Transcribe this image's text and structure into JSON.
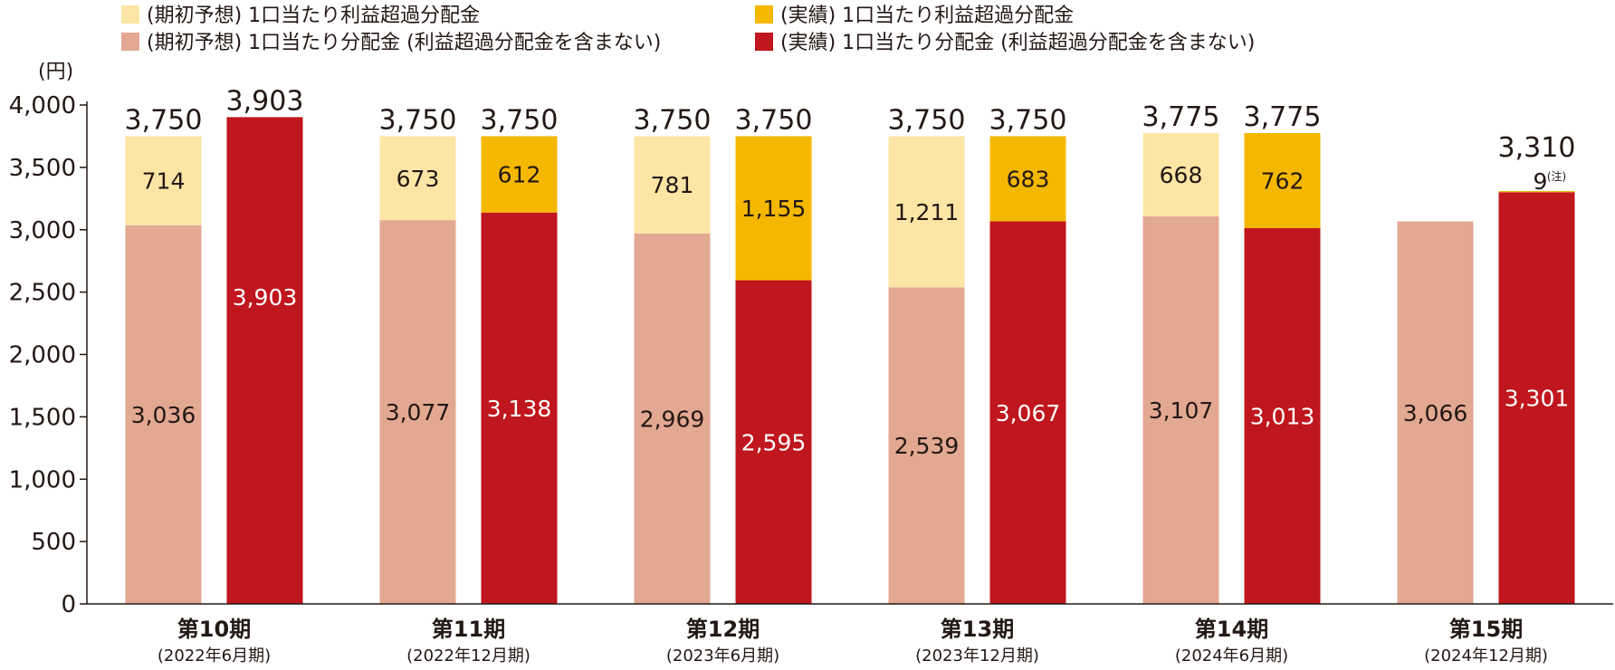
{
  "colors": {
    "forecast_excess": "#fde5a6",
    "forecast_base": "#e3a891",
    "actual_excess": "#f5b800",
    "actual_base": "#c0161d",
    "axis": "#231815"
  },
  "chart_data": {
    "type": "bar",
    "stacked": true,
    "unit_label": "(円)",
    "ylim": [
      0,
      4000
    ],
    "yticks": [
      0,
      500,
      1000,
      1500,
      2000,
      2500,
      3000,
      3500,
      4000
    ],
    "ytick_labels": [
      "0",
      "500",
      "1,000",
      "1,500",
      "2,000",
      "2,500",
      "3,000",
      "3,500",
      "4,000"
    ],
    "legend": [
      {
        "key": "forecast_excess",
        "label": "(期初予想) 1口当たり利益超過分配金"
      },
      {
        "key": "actual_excess",
        "label": "(実績) 1口当たり利益超過分配金"
      },
      {
        "key": "forecast_base",
        "label": "(期初予想) 1口当たり分配金 (利益超過分配金を含まない)"
      },
      {
        "key": "actual_base",
        "label": "(実績) 1口当たり分配金 (利益超過分配金を含まない)"
      }
    ],
    "categories": [
      {
        "label": "第10期",
        "sub": "(2022年6月期)"
      },
      {
        "label": "第11期",
        "sub": "(2022年12月期)"
      },
      {
        "label": "第12期",
        "sub": "(2023年6月期)"
      },
      {
        "label": "第13期",
        "sub": "(2023年12月期)"
      },
      {
        "label": "第14期",
        "sub": "(2024年6月期)"
      },
      {
        "label": "第15期",
        "sub": "(2024年12月期)"
      }
    ],
    "forecast": {
      "base": [
        3036,
        3077,
        2969,
        2539,
        3107,
        3066
      ],
      "base_labels": [
        "3,036",
        "3,077",
        "2,969",
        "2,539",
        "3,107",
        "3,066"
      ],
      "excess": [
        714,
        673,
        781,
        1211,
        668,
        null
      ],
      "excess_labels": [
        "714",
        "673",
        "781",
        "1,211",
        "668",
        ""
      ],
      "total_labels": [
        "3,750",
        "3,750",
        "3,750",
        "3,750",
        "3,775",
        ""
      ]
    },
    "actual": {
      "base": [
        3903,
        3138,
        2595,
        3067,
        3013,
        3301
      ],
      "base_labels": [
        "3,903",
        "3,138",
        "2,595",
        "3,067",
        "3,013",
        "3,301"
      ],
      "excess": [
        0,
        612,
        1155,
        683,
        762,
        9
      ],
      "excess_labels": [
        "",
        "612",
        "1,155",
        "683",
        "762",
        "9"
      ],
      "excess_note": [
        "",
        "",
        "",
        "",
        "",
        "(注)"
      ],
      "total_labels": [
        "3,903",
        "3,750",
        "3,750",
        "3,750",
        "3,775",
        "3,310"
      ]
    }
  }
}
